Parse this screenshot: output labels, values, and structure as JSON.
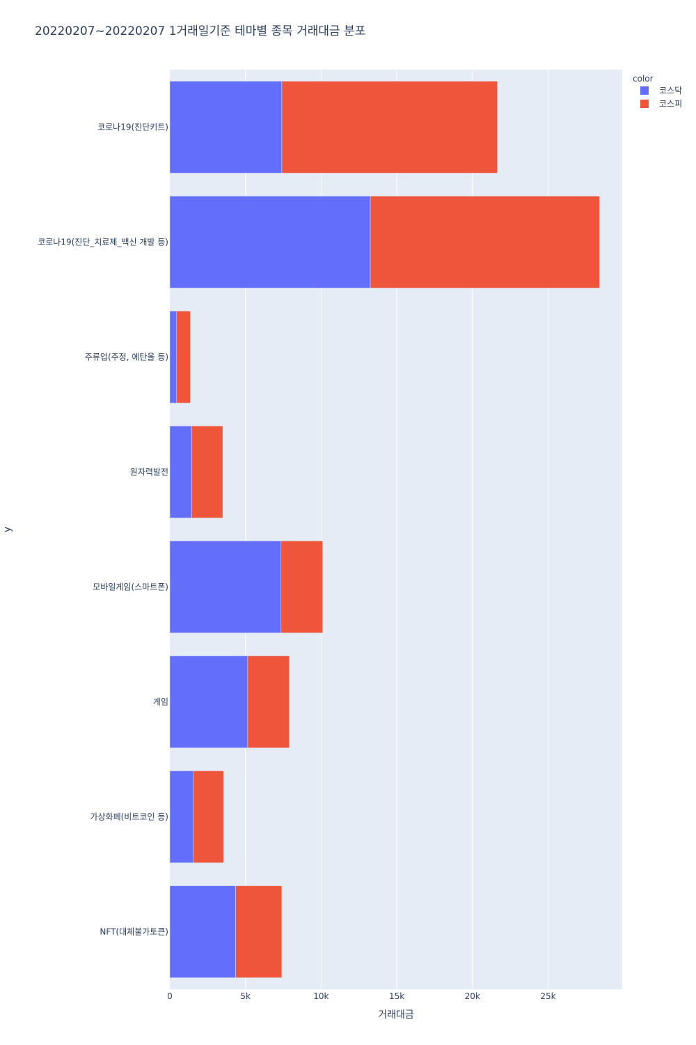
{
  "chart_data": {
    "type": "bar",
    "orientation": "horizontal",
    "barmode": "stack",
    "title": "20220207~20220207 1거래일기준 테마별 종목 거래대금 분포",
    "xlabel": "거래대금",
    "ylabel": "y",
    "xlim": [
      0,
      29900
    ],
    "x_ticks": [
      0,
      5000,
      10000,
      15000,
      20000,
      25000
    ],
    "x_tick_labels": [
      "0",
      "5k",
      "10k",
      "15k",
      "20k",
      "25k"
    ],
    "grid": true,
    "legend": {
      "title": "color",
      "placement": "top-right"
    },
    "categories": [
      "코로나19(진단키트)",
      "코로나19(진단_치료제_백신 개발 등)",
      "주류업(주정, 에탄올 등)",
      "원자력발전",
      "모바일게임(스마트폰)",
      "게임",
      "가상화폐(비트코인 등)",
      "NFT(대체불가토큰)"
    ],
    "series": [
      {
        "name": "코스닥",
        "color": "#636efa",
        "values": [
          7400,
          13250,
          450,
          1450,
          7350,
          5150,
          1550,
          4350
        ]
      },
      {
        "name": "코스피",
        "color": "#ef553b",
        "values": [
          14250,
          15150,
          900,
          2050,
          2750,
          2750,
          2000,
          3050
        ]
      }
    ]
  }
}
